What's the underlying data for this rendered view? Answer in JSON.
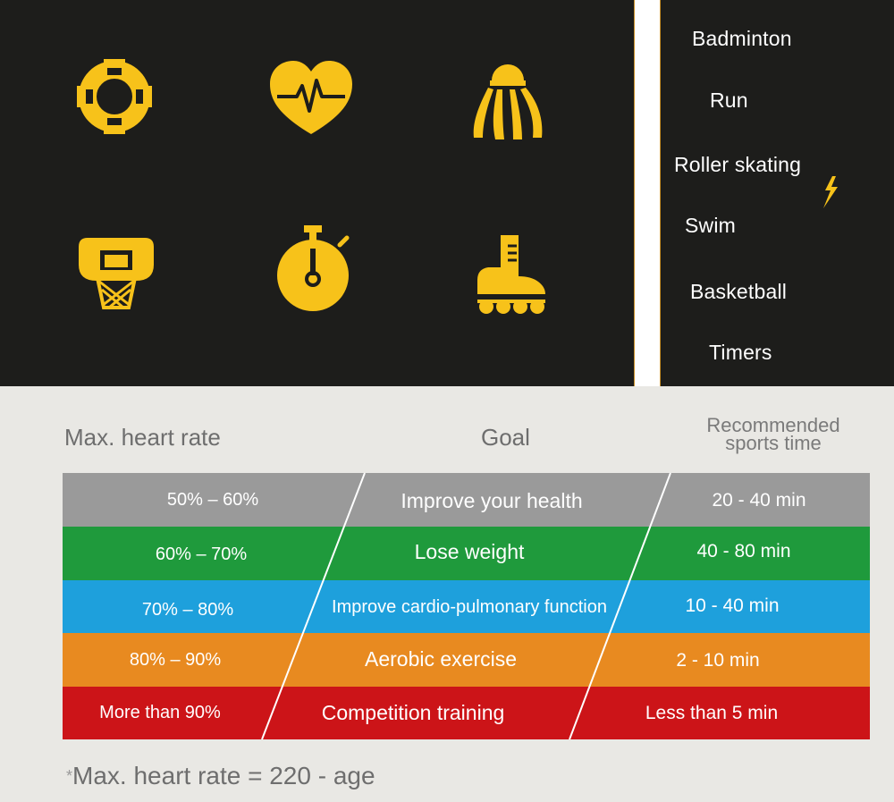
{
  "colors": {
    "dark_panel": "#1d1d1b",
    "icon_yellow": "#f7c21a",
    "accent_line": "#c8902a",
    "row_gray": "#9a9a9a",
    "row_green": "#1f9a3c",
    "row_blue": "#1ea0dc",
    "row_orange": "#e88a20",
    "row_red": "#cc1418"
  },
  "icons": [
    "swim-lifebuoy-icon",
    "heart-rate-icon",
    "badminton-shuttlecock-icon",
    "basketball-hoop-icon",
    "stopwatch-timer-icon",
    "roller-skate-icon"
  ],
  "sports_list": [
    "Badminton",
    "Run",
    "Roller skating",
    "Swim",
    "Basketball",
    "Timers"
  ],
  "headers": {
    "col1": "Max. heart rate",
    "col2": "Goal",
    "col3_line1": "Recommended",
    "col3_line2": "sports time"
  },
  "rows": [
    {
      "rate": "50% – 60%",
      "goal": "Improve your health",
      "time": "20 - 40 min"
    },
    {
      "rate": "60% – 70%",
      "goal": "Lose weight",
      "time": "40 - 80 min"
    },
    {
      "rate": "70% – 80%",
      "goal": "Improve cardio-pulmonary function",
      "time": "10 - 40 min"
    },
    {
      "rate": "80% – 90%",
      "goal": "Aerobic exercise",
      "time": "2 - 10 min"
    },
    {
      "rate": "More than 90%",
      "goal": "Competition training",
      "time": "Less than 5 min"
    }
  ],
  "footnote": {
    "star": "*",
    "text": "Max. heart rate = 220 - age"
  }
}
